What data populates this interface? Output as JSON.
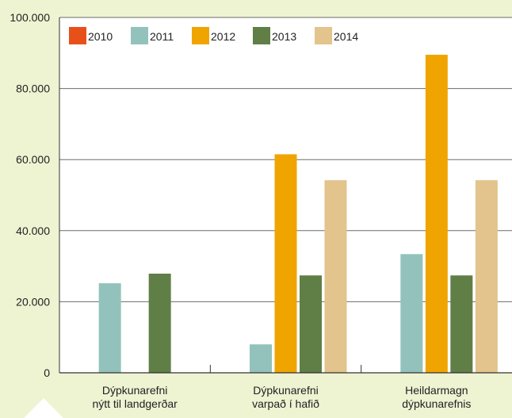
{
  "chart_data": {
    "type": "bar",
    "categories": [
      [
        "Dýpkunarefni",
        "nýtt til landgerðar"
      ],
      [
        "Dýpkunarefni",
        "varpað í hafið"
      ],
      [
        "Heildarmagn",
        "dýpkunarefnis"
      ]
    ],
    "series": [
      {
        "name": "2010",
        "color": "#e8501a",
        "values": [
          0,
          0,
          0
        ]
      },
      {
        "name": "2011",
        "color": "#93c2bc",
        "values": [
          25200,
          8000,
          33400
        ]
      },
      {
        "name": "2012",
        "color": "#f0a400",
        "values": [
          0,
          61500,
          89500
        ]
      },
      {
        "name": "2013",
        "color": "#5f7f47",
        "values": [
          27900,
          27400,
          27400
        ]
      },
      {
        "name": "2014",
        "color": "#e2c48c",
        "values": [
          0,
          54200,
          54200
        ]
      }
    ],
    "yticks": [
      "0",
      "20.000",
      "40.000",
      "60.000",
      "80.000",
      "100.000"
    ],
    "ylim": [
      0,
      100000
    ],
    "grid": true,
    "legend_position": "top-left",
    "background": "#eef3d2",
    "plot_background": "#ffffff"
  }
}
